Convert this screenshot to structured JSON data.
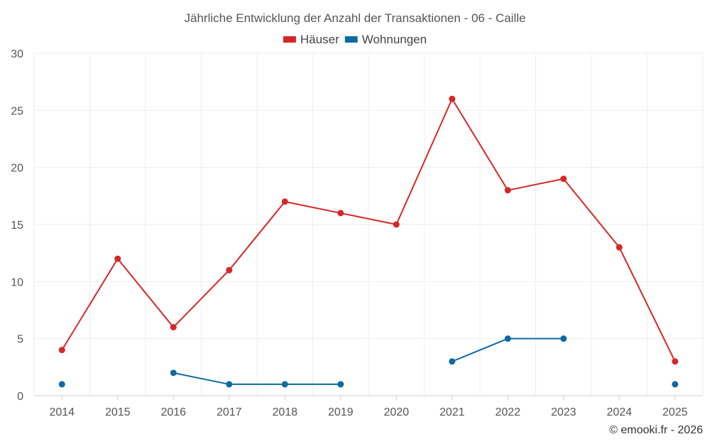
{
  "chart_data": {
    "type": "line",
    "title": "Jährliche Entwicklung der Anzahl der Transaktionen - 06 - Caille",
    "categories": [
      "2014",
      "2015",
      "2016",
      "2017",
      "2018",
      "2019",
      "2020",
      "2021",
      "2022",
      "2023",
      "2024",
      "2025"
    ],
    "ylim": [
      0,
      30
    ],
    "yticks": [
      0,
      5,
      10,
      15,
      20,
      25,
      30
    ],
    "xlabel": "",
    "ylabel": "",
    "grid": true,
    "legend_position": "top-center",
    "series": [
      {
        "name": "Häuser",
        "color": "#d62728",
        "values": [
          4,
          12,
          6,
          11,
          17,
          16,
          15,
          26,
          18,
          19,
          13,
          3
        ]
      },
      {
        "name": "Wohnungen",
        "color": "#0e6aa1",
        "values": [
          1,
          null,
          2,
          1,
          1,
          1,
          null,
          3,
          5,
          5,
          null,
          1
        ]
      }
    ]
  },
  "credit": "© emooki.fr - 2026"
}
